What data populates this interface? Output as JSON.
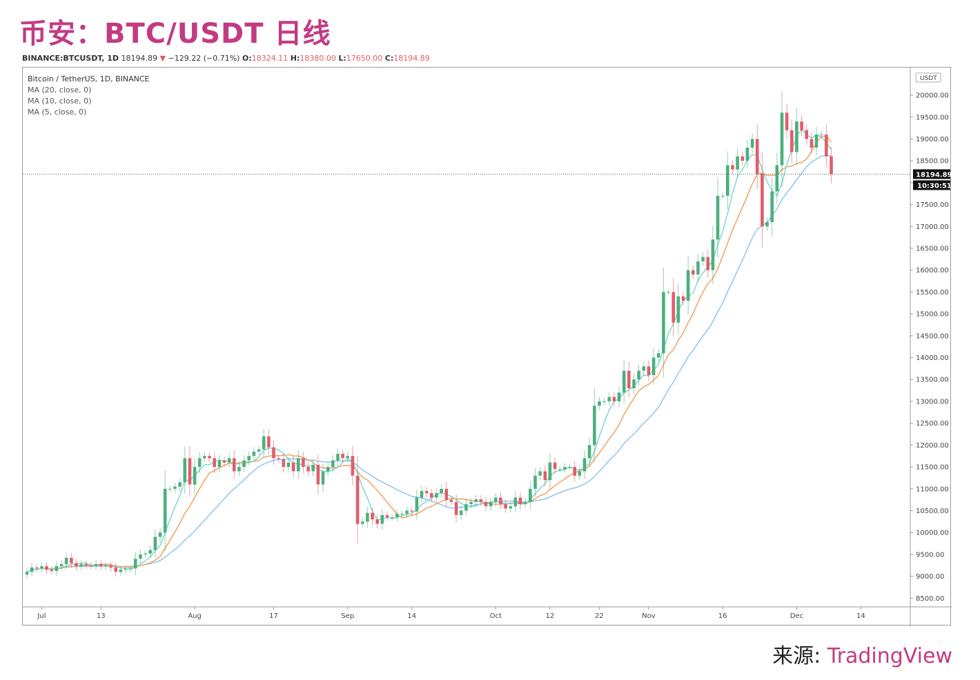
{
  "header": {
    "title": "币安：BTC/USDT 日线"
  },
  "ohlc": {
    "symbol": "BINANCE:BTCUSDT, 1D",
    "price": "18194.89",
    "arrow": "▼",
    "change": "−129.22 (−0.71%)",
    "o_label": "O:",
    "o": "18324.11",
    "h_label": "H:",
    "h": "18380.00",
    "l_label": "L:",
    "l": "17650.00",
    "c_label": "C:",
    "c": "18194.89"
  },
  "legend": {
    "main": "Bitcoin / TetherUS, 1D, BINANCE",
    "ma20": "MA (20, close, 0)",
    "ma10": "MA (10, close, 0)",
    "ma5": "MA (5, close, 0)"
  },
  "source": {
    "prefix": "来源: ",
    "brand": "TradingView"
  },
  "colors": {
    "up": "#4caf7d",
    "down": "#e15d6a",
    "ma20": "#8cc6ea",
    "ma10": "#f2a25c",
    "ma5": "#7fd8cf",
    "title": "#c23b83"
  },
  "chart_data": {
    "type": "candlestick",
    "title": "币安：BTC/USDT 日线",
    "currency_label": "USDT",
    "last_price_label": "18194.89",
    "countdown_label": "10:30:51",
    "ylim": [
      8300,
      20600
    ],
    "y_ticks": [
      8500,
      9000,
      9500,
      10000,
      10500,
      11000,
      11500,
      12000,
      12500,
      13000,
      13500,
      14000,
      14500,
      15000,
      15500,
      16000,
      16500,
      17000,
      17500,
      18000,
      18500,
      19000,
      19500,
      20000
    ],
    "y_tick_labels": [
      "8500.00",
      "9000.00",
      "9500.00",
      "10000.00",
      "10500.00",
      "11000.00",
      "11500.00",
      "12000.00",
      "12500.00",
      "13000.00",
      "13500.00",
      "14000.00",
      "14500.00",
      "15000.00",
      "15500.00",
      "16000.00",
      "16500.00",
      "17000.00",
      "17500.00",
      "18000.00",
      "18500.00",
      "19000.00",
      "19500.00",
      "20000.00"
    ],
    "x_tick_labels": [
      {
        "label": "Jul",
        "index": 3
      },
      {
        "label": "13",
        "index": 15
      },
      {
        "label": "Aug",
        "index": 34
      },
      {
        "label": "17",
        "index": 50
      },
      {
        "label": "Sep",
        "index": 65
      },
      {
        "label": "14",
        "index": 78
      },
      {
        "label": "Oct",
        "index": 95
      },
      {
        "label": "12",
        "index": 106
      },
      {
        "label": "22",
        "index": 116
      },
      {
        "label": "Nov",
        "index": 126
      },
      {
        "label": "16",
        "index": 141
      },
      {
        "label": "Dec",
        "index": 156
      },
      {
        "label": "14",
        "index": 169
      }
    ],
    "close": [
      9100,
      9200,
      9180,
      9230,
      9150,
      9120,
      9230,
      9280,
      9420,
      9300,
      9230,
      9280,
      9250,
      9230,
      9280,
      9230,
      9250,
      9200,
      9100,
      9150,
      9170,
      9180,
      9400,
      9500,
      9520,
      9600,
      9900,
      10000,
      11000,
      11000,
      11050,
      11150,
      11700,
      11100,
      11500,
      11700,
      11750,
      11700,
      11500,
      11650,
      11600,
      11700,
      11400,
      11500,
      11650,
      11750,
      11850,
      11900,
      12200,
      11950,
      11700,
      11680,
      11500,
      11600,
      11400,
      11700,
      11500,
      11400,
      11550,
      11100,
      11400,
      11500,
      11650,
      11800,
      11700,
      11750,
      11300,
      10200,
      10250,
      10450,
      10300,
      10200,
      10400,
      10350,
      10350,
      10430,
      10430,
      10500,
      10480,
      10800,
      10950,
      10900,
      10800,
      10900,
      11000,
      10750,
      10700,
      10400,
      10500,
      10650,
      10700,
      10760,
      10700,
      10600,
      10700,
      10800,
      10650,
      10550,
      10600,
      10800,
      10650,
      10700,
      11000,
      11300,
      11400,
      11200,
      11600,
      11450,
      11450,
      11500,
      11500,
      11300,
      11400,
      11700,
      12000,
      12900,
      13000,
      13000,
      13100,
      13000,
      13200,
      13700,
      13300,
      13500,
      13700,
      13800,
      13600,
      14000,
      14100,
      15500,
      15500,
      14800,
      15400,
      15300,
      16000,
      15900,
      16200,
      16300,
      16000,
      16700,
      17700,
      17700,
      18400,
      18300,
      18600,
      18500,
      18800,
      19000,
      18200,
      17000,
      17100,
      17800,
      18400,
      19600,
      19200,
      18700,
      19400,
      19200,
      19000,
      18800,
      19100,
      19100,
      18600,
      18194.89
    ],
    "series": [
      {
        "name": "MA (20, close, 0)",
        "color": "#8cc6ea"
      },
      {
        "name": "MA (10, close, 0)",
        "color": "#f2a25c"
      },
      {
        "name": "MA (5, close, 0)",
        "color": "#7fd8cf"
      }
    ]
  }
}
